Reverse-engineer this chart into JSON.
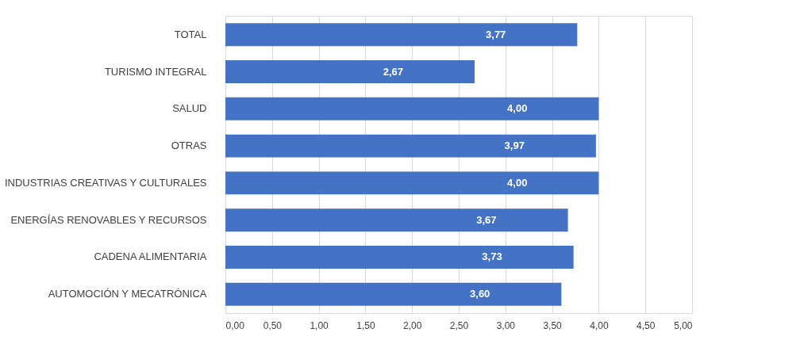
{
  "chart_data": {
    "type": "bar",
    "orientation": "horizontal",
    "categories": [
      "TOTAL",
      "TURISMO INTEGRAL",
      "SALUD",
      "OTRAS",
      "INDUSTRIAS CREATIVAS Y CULTURALES",
      "ENERGÍAS RENOVABLES Y RECURSOS",
      "CADENA ALIMENTARIA",
      "AUTOMOCIÓN Y MECATRÓNICA"
    ],
    "values": [
      3.77,
      2.67,
      4.0,
      3.97,
      4.0,
      3.67,
      3.73,
      3.6
    ],
    "value_labels": [
      "3,77",
      "2,67",
      "4,00",
      "3,97",
      "4,00",
      "3,67",
      "3,73",
      "3,60"
    ],
    "color": "#4472c4",
    "xlim": [
      0,
      5
    ],
    "xticks": [
      {
        "value": 0,
        "label": "0,00"
      },
      {
        "value": 0.5,
        "label": "0,50"
      },
      {
        "value": 1,
        "label": "1,00"
      },
      {
        "value": 1.5,
        "label": "1,50"
      },
      {
        "value": 2,
        "label": "2,00"
      },
      {
        "value": 2.5,
        "label": "2,50"
      },
      {
        "value": 3,
        "label": "3,00"
      },
      {
        "value": 3.5,
        "label": "3,50"
      },
      {
        "value": 4,
        "label": "4,00"
      },
      {
        "value": 4.5,
        "label": "4,50"
      },
      {
        "value": 5,
        "label": "5,00"
      }
    ],
    "grid": "x"
  }
}
